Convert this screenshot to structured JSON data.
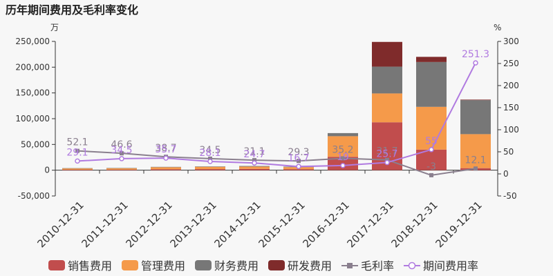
{
  "chart_data": {
    "type": "bar",
    "title": "历年期间费用及毛利率变化",
    "left_unit": "万",
    "right_unit": "%",
    "categories": [
      "2010-12-31",
      "2011-12-31",
      "2012-12-31",
      "2013-12-31",
      "2014-12-31",
      "2015-12-31",
      "2016-12-31",
      "2017-12-31",
      "2018-12-31",
      "2019-12-31"
    ],
    "left_axis": {
      "min": -50000,
      "max": 250000,
      "ticks": [
        -50000,
        0,
        50000,
        100000,
        150000,
        200000,
        250000
      ],
      "tick_labels": [
        "-50,000",
        "0",
        "50,000",
        "100,000",
        "150,000",
        "200,000",
        "250,000"
      ]
    },
    "right_axis": {
      "min": -50,
      "max": 300,
      "ticks": [
        -50,
        0,
        50,
        100,
        150,
        200,
        250,
        300
      ],
      "tick_labels": [
        "-50",
        "0",
        "50",
        "100",
        "150",
        "200",
        "250",
        "300"
      ]
    },
    "bar_series": [
      {
        "name": "销售费用",
        "color": "#c14d4d",
        "values": [
          1000,
          1100,
          1800,
          2100,
          2500,
          2000,
          26000,
          93000,
          40000,
          4000
        ]
      },
      {
        "name": "管理费用",
        "color": "#f59a4a",
        "values": [
          2500,
          2700,
          4000,
          4500,
          4500,
          4000,
          40000,
          56000,
          83000,
          66000
        ]
      },
      {
        "name": "财务费用",
        "color": "#777777",
        "values": [
          500,
          500,
          700,
          800,
          1200,
          1000,
          6000,
          52000,
          87000,
          66000
        ]
      },
      {
        "name": "研发费用",
        "color": "#7f2b2b",
        "values": [
          0,
          0,
          0,
          0,
          0,
          0,
          0,
          48000,
          10000,
          1000
        ]
      }
    ],
    "line_series": [
      {
        "name": "毛利率",
        "color": "#8a7f8e",
        "marker": "square",
        "values": [
          52.1,
          46.6,
          38.7,
          34.5,
          31.1,
          29.3,
          35.2,
          31.7,
          -3,
          12.1
        ],
        "labels": [
          "52.1",
          "46.6",
          "38.7",
          "34.5",
          "31.1",
          "29.3",
          "35.2",
          "31.7",
          "-3",
          "12.1"
        ]
      },
      {
        "name": "期间费用率",
        "color": "#b07ae0",
        "marker": "circle",
        "values": [
          29.1,
          34.5,
          35.7,
          28.1,
          24.7,
          16.7,
          19,
          25.7,
          55,
          251.3
        ],
        "labels": [
          "29.1",
          "34.5",
          "35.7",
          "28.1",
          "24.7",
          "16.7",
          "19",
          "25.7",
          "55",
          "251.3"
        ]
      }
    ],
    "legend_position": "bottom",
    "grid": false
  }
}
